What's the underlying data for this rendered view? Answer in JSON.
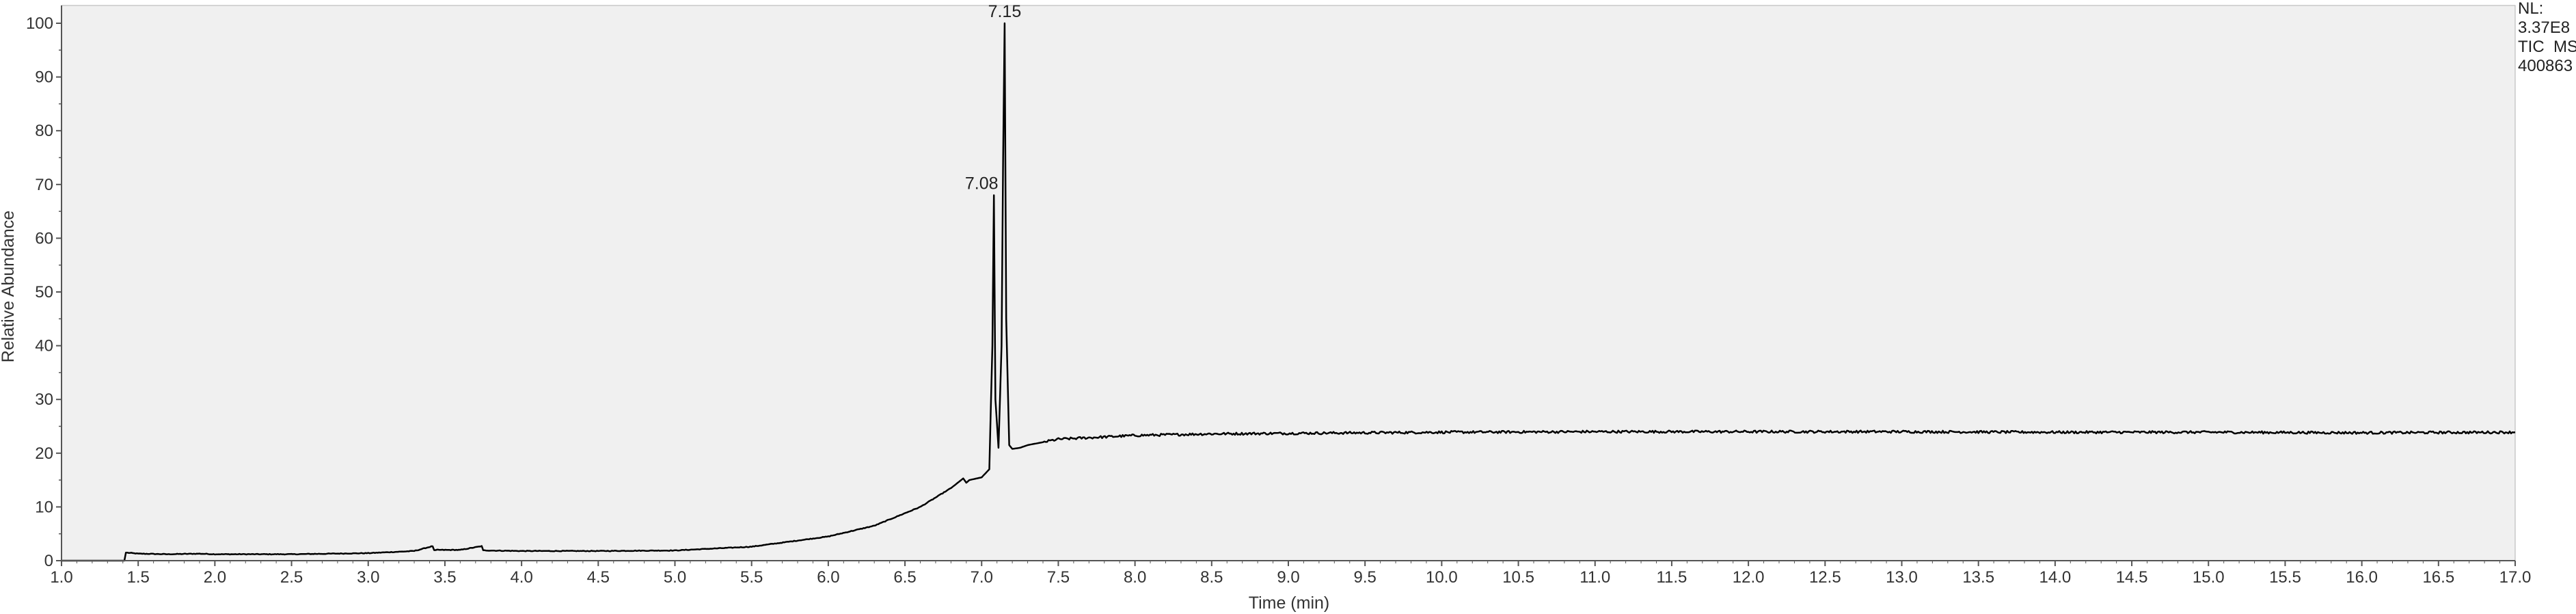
{
  "colors": {
    "plot_background": "#f0f0f0",
    "trace": "#000000",
    "axis": "#555555",
    "page_background": "#ffffff"
  },
  "info": {
    "nl_label": "NL:",
    "nl_value": "3.37E8",
    "filter": "TIC  MS",
    "sample": "400863"
  },
  "chart_data": {
    "type": "line",
    "title": "",
    "xlabel": "Time (min)",
    "ylabel": "Relative Abundance",
    "xlim": [
      1.0,
      17.0
    ],
    "ylim": [
      0,
      100
    ],
    "x_ticks": [
      "1.0",
      "1.5",
      "2.0",
      "2.5",
      "3.0",
      "3.5",
      "4.0",
      "4.5",
      "5.0",
      "5.5",
      "6.0",
      "6.5",
      "7.0",
      "7.5",
      "8.0",
      "8.5",
      "9.0",
      "9.5",
      "10.0",
      "10.5",
      "11.0",
      "11.5",
      "12.0",
      "12.5",
      "13.0",
      "13.5",
      "14.0",
      "14.5",
      "15.0",
      "15.5",
      "16.0",
      "16.5",
      "17.0"
    ],
    "y_ticks": [
      "0",
      "10",
      "20",
      "30",
      "40",
      "50",
      "60",
      "70",
      "80",
      "90",
      "100"
    ],
    "grid": false,
    "series": [
      {
        "x": [
          1.0,
          1.41,
          1.42,
          1.5,
          1.7,
          1.9,
          2.0,
          2.5,
          3.0,
          3.3,
          3.42,
          3.43,
          3.45,
          3.6,
          3.74,
          3.75,
          3.77,
          4.0,
          4.5,
          5.0,
          5.5,
          6.0,
          6.3,
          6.6,
          6.8,
          6.88,
          6.9,
          6.92,
          7.0,
          7.05,
          7.07,
          7.08,
          7.09,
          7.11,
          7.13,
          7.14,
          7.15,
          7.16,
          7.18,
          7.2,
          7.25,
          7.3,
          7.5,
          8.0,
          8.5,
          9.0,
          10.0,
          11.0,
          12.0,
          13.0,
          14.0,
          15.0,
          16.0,
          17.0
        ],
        "y": [
          0,
          0,
          1.5,
          1.3,
          1.2,
          1.3,
          1.2,
          1.2,
          1.4,
          1.8,
          2.7,
          1.9,
          2.0,
          2.0,
          2.7,
          1.9,
          1.9,
          1.8,
          1.8,
          1.9,
          2.6,
          4.5,
          6.5,
          10.0,
          13.5,
          15.3,
          14.5,
          15.0,
          15.5,
          17.0,
          40.0,
          68.0,
          30.0,
          21.0,
          40.0,
          75.0,
          100.0,
          45.0,
          21.5,
          20.8,
          21.0,
          21.5,
          22.6,
          23.3,
          23.6,
          23.7,
          23.9,
          24.0,
          24.0,
          24.0,
          23.9,
          23.9,
          23.8,
          23.9
        ]
      }
    ],
    "annotations": [
      {
        "label": "7.15",
        "x": 7.15,
        "y": 100
      },
      {
        "label": "7.08",
        "x": 7.08,
        "y": 68
      }
    ]
  }
}
